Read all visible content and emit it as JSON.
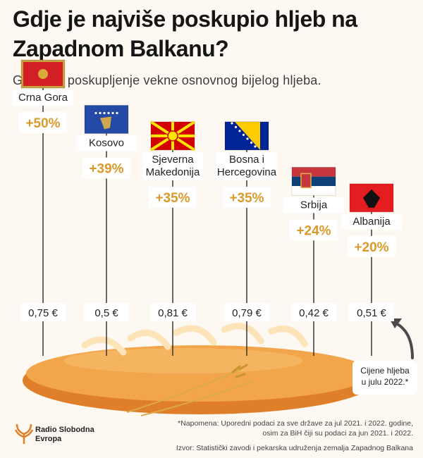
{
  "header": {
    "title": "Gdje je najviše poskupio hljeb na Zapadnom Balkanu?",
    "subtitle": "Godišnje poskupljenje vekne osnovnog bijelog hljeba."
  },
  "colors": {
    "accent": "#d99a2b",
    "background": "#fdf8f2",
    "bread": "#f0a042"
  },
  "chart_data": {
    "type": "bar",
    "categories": [
      "Crna Gora",
      "Kosovo",
      "Sjeverna Makedonija",
      "Bosna i Hercegovina",
      "Srbija",
      "Albanija"
    ],
    "category_lines": [
      [
        "Crna Gora"
      ],
      [
        "Kosovo"
      ],
      [
        "Sjeverna",
        "Makedonija"
      ],
      [
        "Bosna i",
        "Hercegovina"
      ],
      [
        "Srbija"
      ],
      [
        "Albanija"
      ]
    ],
    "flag_icons": [
      "flag-montenegro",
      "flag-kosovo",
      "flag-north-macedonia",
      "flag-bosnia-herzegovina",
      "flag-serbia",
      "flag-albania"
    ],
    "values": [
      50,
      39,
      35,
      35,
      24,
      20
    ],
    "value_labels": [
      "+50%",
      "+39%",
      "+35%",
      "+35%",
      "+24%",
      "+20%"
    ],
    "prices": [
      0.75,
      0.5,
      0.81,
      0.79,
      0.42,
      0.51
    ],
    "price_labels": [
      "0,75 €",
      "0,5 €",
      "0,81 €",
      "0,79 €",
      "0,42 €",
      "0,51 €"
    ],
    "ylim": [
      0,
      50
    ],
    "unit": "%",
    "annotation": "Cijene hljeba u julu 2022.*"
  },
  "notes": {
    "price_note_line1": "Cijene hljeba",
    "price_note_line2": "u julu 2022.*",
    "footnote_line1": "*Napomena: Uporedni podaci za sve države za jul 2021. i 2022. godine,",
    "footnote_line2": "osim za BiH čiji su podaci za jun 2021. i 2022.",
    "source": "Izvor: Statistički zavodi i pekarska udruženja zemalja Zapadnog Balkana"
  },
  "logo": {
    "line1": "Radio Slobodna",
    "line2": "Evropa"
  }
}
